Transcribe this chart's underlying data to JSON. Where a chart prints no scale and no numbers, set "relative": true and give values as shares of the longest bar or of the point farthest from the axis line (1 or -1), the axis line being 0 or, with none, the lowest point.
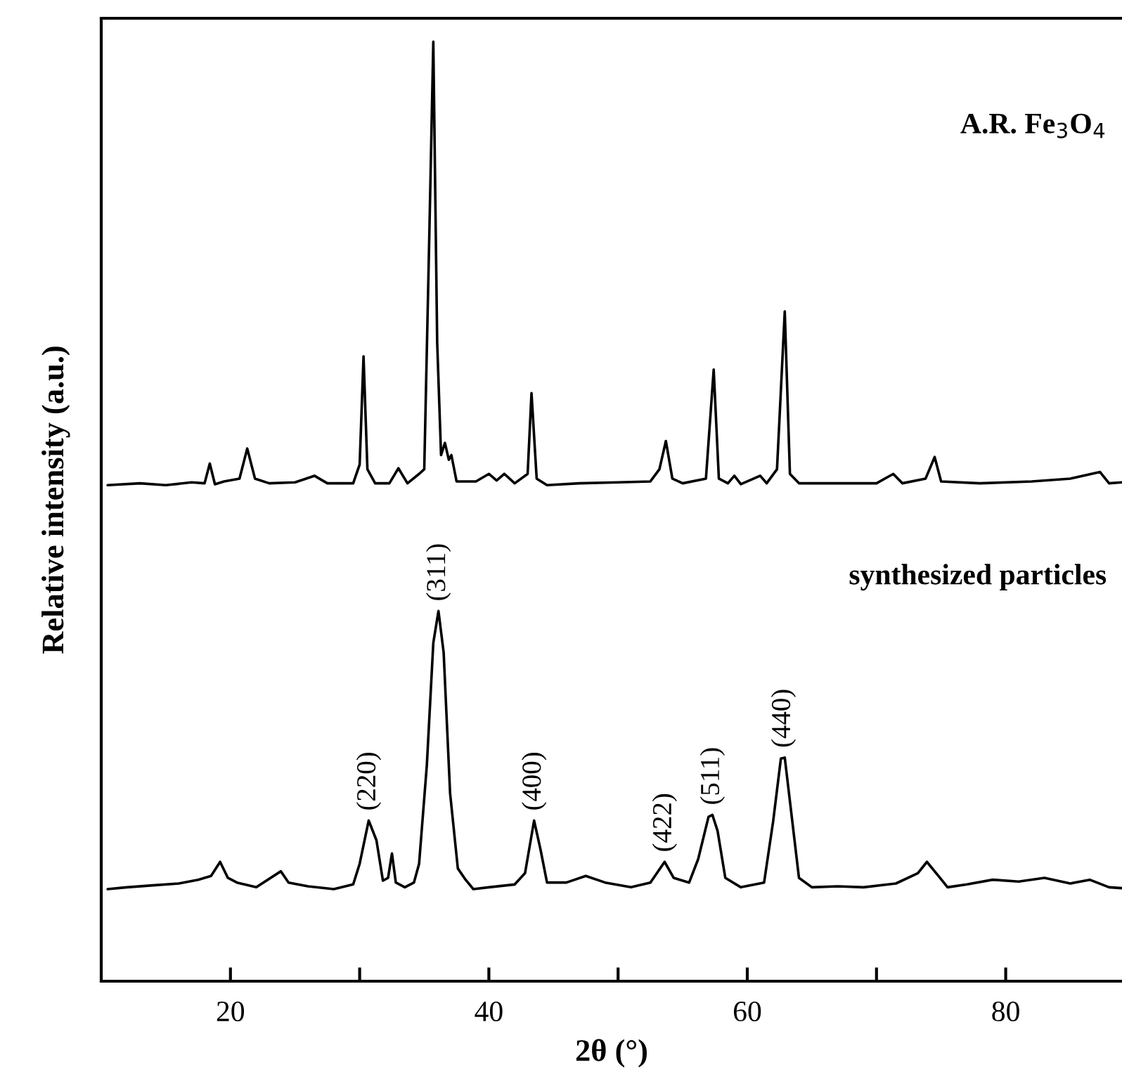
{
  "chart_data": {
    "type": "line",
    "relative": true,
    "xlabel": "2θ (°)",
    "ylabel": "Relative intensity (a.u.)",
    "xlim": [
      10,
      89
    ],
    "xticks": [
      20,
      {
        "value": 30,
        "label": null
      },
      40,
      {
        "value": 50,
        "label": null
      },
      60,
      {
        "value": 70,
        "label": null
      },
      80
    ],
    "series": [
      {
        "color": "#000000",
        "x": [
          10.5,
          13,
          15,
          17,
          18.0,
          18.4,
          18.8,
          19.5,
          20.7,
          21.3,
          21.9,
          23,
          25,
          26.5,
          27.5,
          29.5,
          30.0,
          30.3,
          30.6,
          31.2,
          32.3,
          33.0,
          33.7,
          34.6,
          35.0,
          35.4,
          35.7,
          36.0,
          36.3,
          36.6,
          36.9,
          37.1,
          37.5,
          39,
          40,
          40.6,
          41.2,
          42,
          43.0,
          43.3,
          43.7,
          44.5,
          47,
          50,
          52.5,
          53.2,
          53.7,
          54.2,
          55,
          56.8,
          57.4,
          57.8,
          58.5,
          59.0,
          59.5,
          61.0,
          61.5,
          62.3,
          62.9,
          63.3,
          64,
          67,
          70,
          71.3,
          72,
          73.8,
          74.5,
          75,
          78,
          82,
          85,
          87.3,
          88,
          89
        ],
        "values": [
          0.528,
          0.53,
          0.528,
          0.531,
          0.53,
          0.551,
          0.529,
          0.532,
          0.535,
          0.567,
          0.535,
          0.53,
          0.531,
          0.538,
          0.53,
          0.53,
          0.55,
          0.665,
          0.545,
          0.53,
          0.53,
          0.546,
          0.53,
          0.54,
          0.545,
          0.8,
          1.0,
          0.68,
          0.56,
          0.573,
          0.555,
          0.56,
          0.532,
          0.532,
          0.54,
          0.533,
          0.54,
          0.53,
          0.54,
          0.626,
          0.535,
          0.528,
          0.53,
          0.531,
          0.532,
          0.545,
          0.575,
          0.535,
          0.53,
          0.535,
          0.651,
          0.535,
          0.53,
          0.538,
          0.529,
          0.538,
          0.53,
          0.545,
          0.713,
          0.54,
          0.53,
          0.53,
          0.53,
          0.54,
          0.53,
          0.535,
          0.558,
          0.532,
          0.53,
          0.532,
          0.535,
          0.542,
          0.53,
          0.531
        ]
      },
      {
        "color": "#000000",
        "x": [
          10.5,
          12,
          14,
          16,
          17.5,
          18.5,
          19.2,
          19.8,
          20.5,
          22,
          23.9,
          24.5,
          26,
          28,
          29.5,
          30.0,
          30.7,
          31.3,
          31.8,
          32.2,
          32.5,
          32.8,
          33.5,
          34.2,
          34.6,
          35.2,
          35.7,
          36.1,
          36.5,
          37.0,
          37.6,
          38.2,
          38.8,
          40,
          42,
          42.8,
          43.5,
          44.0,
          44.5,
          46,
          47.5,
          49,
          51,
          52.5,
          53.6,
          54.3,
          55.5,
          56.2,
          57.0,
          57.3,
          57.7,
          58.3,
          59.5,
          61.3,
          62.0,
          62.6,
          62.9,
          63.4,
          64.0,
          65,
          67,
          69,
          71.5,
          73.2,
          73.9,
          74.8,
          75.5,
          77,
          79,
          81,
          83,
          85,
          86.5,
          88,
          89
        ],
        "values": [
          0.098,
          0.1,
          0.102,
          0.104,
          0.108,
          0.112,
          0.127,
          0.11,
          0.105,
          0.1,
          0.117,
          0.105,
          0.101,
          0.098,
          0.103,
          0.125,
          0.171,
          0.15,
          0.107,
          0.11,
          0.136,
          0.105,
          0.1,
          0.105,
          0.125,
          0.23,
          0.36,
          0.394,
          0.35,
          0.2,
          0.12,
          0.108,
          0.098,
          0.1,
          0.103,
          0.115,
          0.171,
          0.14,
          0.105,
          0.105,
          0.112,
          0.105,
          0.1,
          0.105,
          0.127,
          0.11,
          0.105,
          0.13,
          0.175,
          0.177,
          0.16,
          0.11,
          0.1,
          0.105,
          0.17,
          0.237,
          0.238,
          0.18,
          0.11,
          0.1,
          0.101,
          0.1,
          0.104,
          0.115,
          0.127,
          0.112,
          0.1,
          0.103,
          0.108,
          0.106,
          0.11,
          0.104,
          0.108,
          0.1,
          0.099
        ]
      }
    ],
    "annotations": [
      "A.R. Fe$_{3}$O$_{4}$",
      "synthesized particles",
      {
        "text": "(220)",
        "x": 30.7,
        "y": 0.171
      },
      {
        "text": "(311)",
        "x": 36.1,
        "y": 0.394
      },
      {
        "text": "(400)",
        "x": 43.5,
        "y": 0.171
      },
      {
        "text": "(422)",
        "x": 53.6,
        "y": 0.127
      },
      {
        "text": "(511)",
        "x": 57.3,
        "y": 0.177
      },
      {
        "text": "(440)",
        "x": 62.8,
        "y": 0.238
      }
    ]
  }
}
